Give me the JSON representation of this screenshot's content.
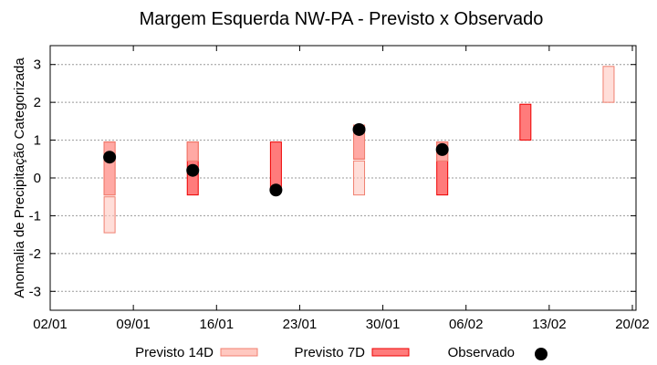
{
  "chart_data": {
    "type": "bar",
    "title": "Margem Esquerda NW-PA - Previsto x Observado",
    "xlabel": "",
    "ylabel": "Anomalia de Precipitação Categorizada",
    "ylim": [
      -3.5,
      3.5
    ],
    "xlim": [
      "02/01",
      "20/02"
    ],
    "y_ticks": [
      3,
      2,
      1,
      0,
      -1,
      -2,
      -3
    ],
    "x_ticks": [
      "02/01",
      "09/01",
      "16/01",
      "23/01",
      "30/01",
      "06/02",
      "13/02",
      "20/02"
    ],
    "grid": "horizontal dotted",
    "legend_position": "bottom",
    "series": [
      {
        "name": "Previsto 7D",
        "kind": "range-bar",
        "color": "#ff7b7b",
        "edge": "#ee0000",
        "data": [
          {
            "x": "07/01",
            "low": -0.45,
            "high": 0.95
          },
          {
            "x": "14/01",
            "low": -0.45,
            "high": 0.95
          },
          {
            "x": "21/01",
            "low": -0.3,
            "high": 0.95
          },
          {
            "x": "28/01",
            "low": 0.5,
            "high": 1.4
          },
          {
            "x": "04/02",
            "low": -0.45,
            "high": 0.95
          },
          {
            "x": "11/02",
            "low": 1.0,
            "high": 1.95
          }
        ]
      },
      {
        "name": "Previsto 14D",
        "kind": "range-bar",
        "color": "#ffc8c0",
        "edge": "#f08070",
        "data": [
          {
            "x": "07/01",
            "low": -1.45,
            "high": -0.5
          },
          {
            "x": "07/01",
            "low": -0.45,
            "high": 0.95
          },
          {
            "x": "14/01",
            "low": 0.45,
            "high": 0.95
          },
          {
            "x": "28/01",
            "low": -0.45,
            "high": 0.45
          },
          {
            "x": "28/01",
            "low": 0.5,
            "high": 1.4
          },
          {
            "x": "04/02",
            "low": 0.45,
            "high": 0.95
          },
          {
            "x": "18/02",
            "low": 2.0,
            "high": 2.95
          }
        ]
      },
      {
        "name": "Observado",
        "kind": "point",
        "color": "#000000",
        "data": [
          {
            "x": "07/01",
            "y": 0.55
          },
          {
            "x": "14/01",
            "y": 0.2
          },
          {
            "x": "21/01",
            "y": -0.32
          },
          {
            "x": "28/01",
            "y": 1.28
          },
          {
            "x": "04/02",
            "y": 0.75
          }
        ]
      }
    ]
  }
}
